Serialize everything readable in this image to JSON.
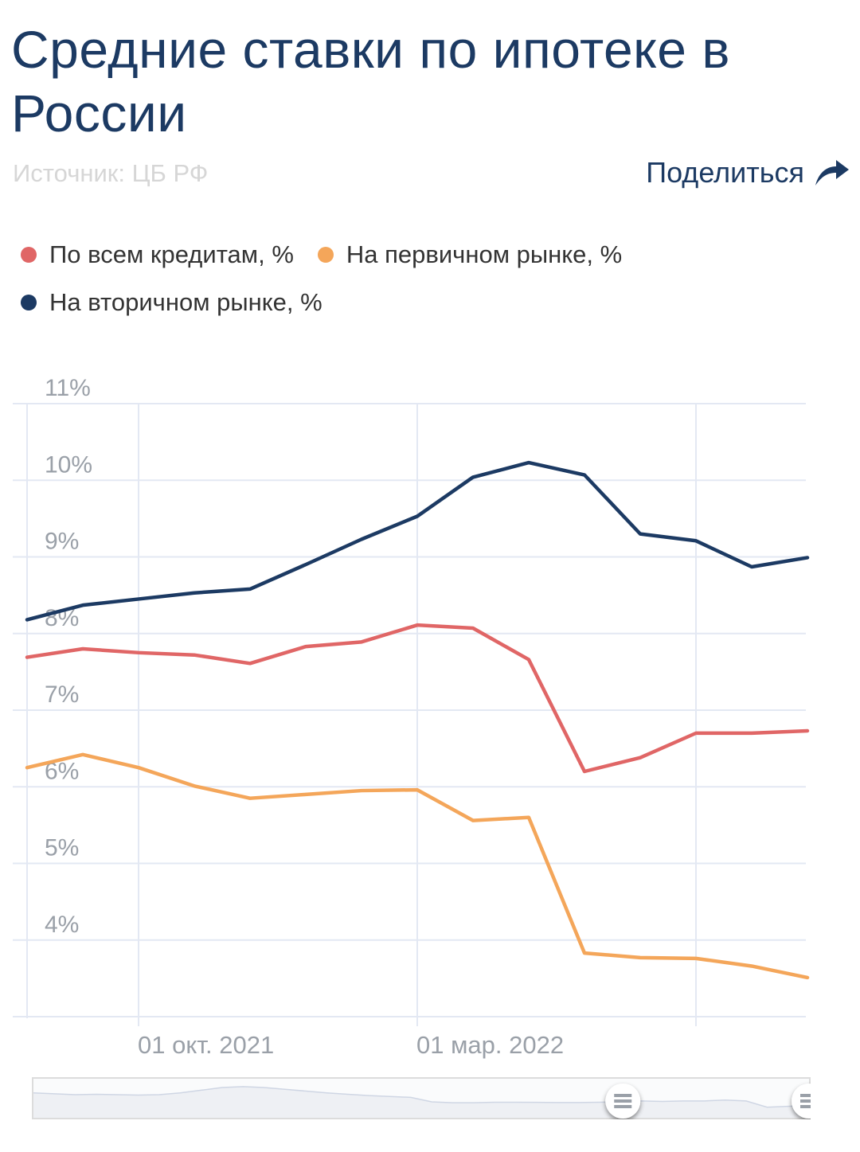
{
  "header": {
    "title": "Средние ставки по ипотеке в России",
    "source": "Источник: ЦБ РФ",
    "share_label": "Поделиться",
    "share_icon": "share-arrow-icon"
  },
  "colors": {
    "title": "#1c3a63",
    "all_credits": "#e06666",
    "primary_market": "#f4a65a",
    "secondary_market": "#1c3a63",
    "grid": "#e3e8f3",
    "axis_label": "#9aa0a8"
  },
  "legend": [
    {
      "label": "По всем кредитам, %",
      "color": "#e06666"
    },
    {
      "label": "На первичном рынке, %",
      "color": "#f4a65a"
    },
    {
      "label": "На вторичном рынке, %",
      "color": "#1c3a63"
    }
  ],
  "chart_data": {
    "type": "line",
    "title": "Средние ставки по ипотеке в России",
    "xlabel": "",
    "ylabel": "",
    "x": [
      "2021-08",
      "2021-09",
      "2021-10",
      "2021-11",
      "2021-12",
      "2022-01",
      "2022-02",
      "2022-03",
      "2022-04",
      "2022-05",
      "2022-06",
      "2022-07",
      "2022-08",
      "2022-09",
      "2022-10"
    ],
    "x_tick_labels": [
      {
        "x": "2021-10",
        "label": "01 окт. 2021"
      },
      {
        "x": "2022-03",
        "label": "01 мар. 2022"
      }
    ],
    "x_grid_at": [
      "2021-10",
      "2022-03",
      "2022-08"
    ],
    "ylim": [
      3,
      11
    ],
    "y_ticks": [
      4,
      5,
      6,
      7,
      8,
      9,
      10,
      11
    ],
    "y_tick_labels": [
      "4%",
      "5%",
      "6%",
      "7%",
      "8%",
      "9%",
      "10%",
      "11%"
    ],
    "grid": true,
    "legend_position": "top-left",
    "series": [
      {
        "name": "По всем кредитам, %",
        "color": "#e06666",
        "values": [
          7.69,
          7.8,
          7.75,
          7.72,
          7.61,
          7.83,
          7.89,
          8.11,
          8.07,
          7.66,
          6.2,
          6.38,
          6.7,
          6.7,
          6.73
        ]
      },
      {
        "name": "На первичном рынке, %",
        "color": "#f4a65a",
        "values": [
          6.25,
          6.42,
          6.25,
          6.01,
          5.85,
          5.9,
          5.95,
          5.96,
          5.56,
          5.6,
          3.83,
          3.77,
          3.76,
          3.66,
          3.51
        ]
      },
      {
        "name": "На вторичном рынке, %",
        "color": "#1c3a63",
        "values": [
          8.18,
          8.37,
          8.45,
          8.53,
          8.58,
          8.9,
          9.23,
          9.53,
          10.04,
          10.23,
          10.07,
          9.3,
          9.21,
          8.87,
          8.99
        ]
      }
    ],
    "navigator": {
      "selected_range_fraction": [
        0.76,
        1.0
      ],
      "overview_values": [
        7.9,
        7.85,
        7.8,
        7.82,
        7.8,
        7.78,
        7.8,
        7.9,
        8.05,
        8.2,
        8.25,
        8.2,
        8.1,
        8.0,
        7.9,
        7.82,
        7.75,
        7.7,
        7.65,
        7.4,
        7.35,
        7.35,
        7.38,
        7.38,
        7.37,
        7.36,
        7.36,
        7.38,
        7.4,
        7.45,
        7.42,
        7.45,
        7.45,
        7.5,
        7.45,
        7.1,
        7.15,
        7.2
      ]
    }
  }
}
